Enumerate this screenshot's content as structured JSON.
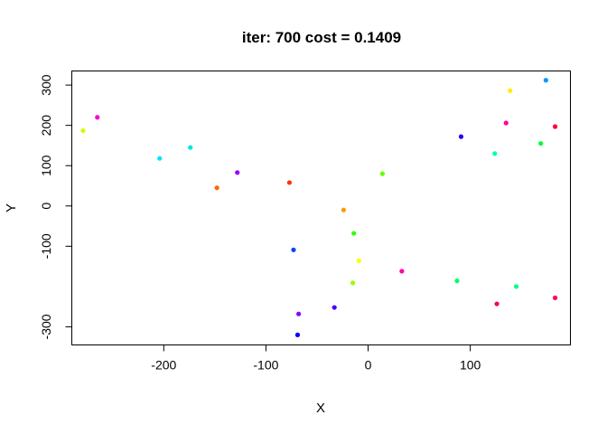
{
  "chart_data": {
    "type": "scatter",
    "title": "iter: 700 cost = 0.1409",
    "xlabel": "X",
    "ylabel": "Y",
    "xlim": [
      -290,
      198
    ],
    "ylim": [
      -345,
      335
    ],
    "xticks": [
      -200,
      -100,
      0,
      100
    ],
    "xtick_labels": [
      "-200",
      "-100",
      "0",
      "100"
    ],
    "yticks": [
      -300,
      -100,
      0,
      100,
      200,
      300
    ],
    "ytick_labels": [
      "-300",
      "-100",
      "0",
      "100",
      "200",
      "300"
    ],
    "grid": false,
    "legend": "none",
    "points": [
      {
        "x": -279,
        "y": 187,
        "color": "#ccff00"
      },
      {
        "x": -265,
        "y": 220,
        "color": "#ff00cc"
      },
      {
        "x": -204,
        "y": 118,
        "color": "#00e5ff"
      },
      {
        "x": -174,
        "y": 145,
        "color": "#00e5e5"
      },
      {
        "x": -148,
        "y": 45,
        "color": "#ff6600"
      },
      {
        "x": -128,
        "y": 83,
        "color": "#9900ff"
      },
      {
        "x": -77,
        "y": 58,
        "color": "#ff3300"
      },
      {
        "x": -73,
        "y": -109,
        "color": "#0044ff"
      },
      {
        "x": -68,
        "y": -268,
        "color": "#8800ff"
      },
      {
        "x": -69,
        "y": -320,
        "color": "#0000ff"
      },
      {
        "x": -33,
        "y": -252,
        "color": "#4400ff"
      },
      {
        "x": -24,
        "y": -10,
        "color": "#ff9900"
      },
      {
        "x": -14,
        "y": -68,
        "color": "#33ff00"
      },
      {
        "x": -15,
        "y": -191,
        "color": "#99ff00"
      },
      {
        "x": -9,
        "y": -136,
        "color": "#ffff00"
      },
      {
        "x": 14,
        "y": 80,
        "color": "#66ff00"
      },
      {
        "x": 33,
        "y": -162,
        "color": "#ff00aa"
      },
      {
        "x": 87,
        "y": -186,
        "color": "#00ff66"
      },
      {
        "x": 91,
        "y": 172,
        "color": "#2200ff"
      },
      {
        "x": 124,
        "y": 130,
        "color": "#00ffaa"
      },
      {
        "x": 126,
        "y": -243,
        "color": "#ff0044"
      },
      {
        "x": 135,
        "y": 206,
        "color": "#ff0099"
      },
      {
        "x": 139,
        "y": 286,
        "color": "#ffee00"
      },
      {
        "x": 145,
        "y": -200,
        "color": "#00ff88"
      },
      {
        "x": 169,
        "y": 155,
        "color": "#00ff33"
      },
      {
        "x": 174,
        "y": 312,
        "color": "#0099ff"
      },
      {
        "x": 183,
        "y": 197,
        "color": "#ff0033"
      },
      {
        "x": 183,
        "y": -228,
        "color": "#ff0066"
      }
    ]
  }
}
